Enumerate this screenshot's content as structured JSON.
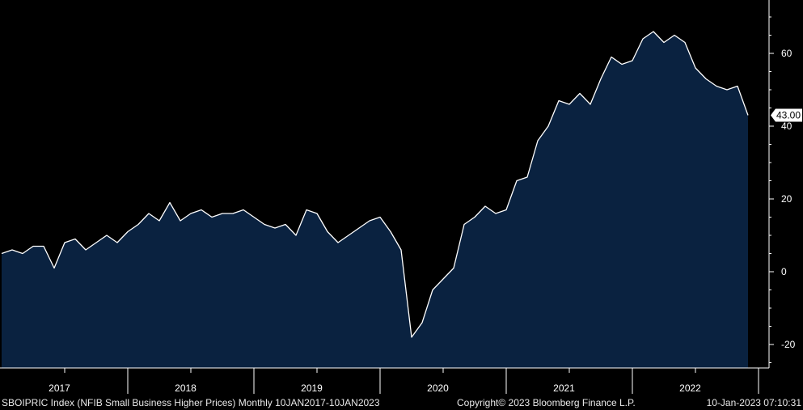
{
  "footer": {
    "left": "SBOIPRIC Index (NFIB Small Business Higher Prices)  Monthly 10JAN2017-10JAN2023",
    "copyright": "Copyright© 2023 Bloomberg Finance L.P.",
    "timestamp": "10-Jan-2023 07:10:31"
  },
  "colors": {
    "background": "#000000",
    "area_fill": "#0a2240",
    "line": "#ffffff",
    "axis": "#ffffff",
    "text": "#ffffff"
  },
  "chart_data": {
    "type": "area",
    "title": "",
    "xlabel": "",
    "ylabel": "",
    "ylim": [
      -26,
      74
    ],
    "y_ticks": [
      -20,
      0,
      20,
      40,
      60
    ],
    "x_ticks": [
      "2017",
      "2018",
      "2019",
      "2020",
      "2021",
      "2022"
    ],
    "last_value_label": "43.00",
    "grid": false,
    "series": [
      {
        "x": [
          "2017-01",
          "2017-02",
          "2017-03",
          "2017-04",
          "2017-05",
          "2017-06",
          "2017-07",
          "2017-08",
          "2017-09",
          "2017-10",
          "2017-11",
          "2017-12",
          "2018-01",
          "2018-02",
          "2018-03",
          "2018-04",
          "2018-05",
          "2018-06",
          "2018-07",
          "2018-08",
          "2018-09",
          "2018-10",
          "2018-11",
          "2018-12",
          "2019-01",
          "2019-02",
          "2019-03",
          "2019-04",
          "2019-05",
          "2019-06",
          "2019-07",
          "2019-08",
          "2019-09",
          "2019-10",
          "2019-11",
          "2019-12",
          "2020-01",
          "2020-02",
          "2020-03",
          "2020-04",
          "2020-05",
          "2020-06",
          "2020-07",
          "2020-08",
          "2020-09",
          "2020-10",
          "2020-11",
          "2020-12",
          "2021-01",
          "2021-02",
          "2021-03",
          "2021-04",
          "2021-05",
          "2021-06",
          "2021-07",
          "2021-08",
          "2021-09",
          "2021-10",
          "2021-11",
          "2021-12",
          "2022-01",
          "2022-02",
          "2022-03",
          "2022-04",
          "2022-05",
          "2022-06",
          "2022-07",
          "2022-08",
          "2022-09",
          "2022-10",
          "2022-11",
          "2022-12"
        ],
        "values": [
          5,
          6,
          5,
          7,
          7,
          1,
          8,
          9,
          6,
          8,
          10,
          8,
          11,
          13,
          16,
          14,
          19,
          14,
          16,
          17,
          15,
          16,
          16,
          17,
          15,
          13,
          12,
          13,
          10,
          17,
          16,
          11,
          8,
          10,
          12,
          14,
          15,
          11,
          6,
          -18,
          -14,
          -5,
          -2,
          1,
          13,
          15,
          18,
          16,
          17,
          25,
          26,
          36,
          40,
          47,
          46,
          49,
          46,
          53,
          59,
          57,
          58,
          64,
          66,
          63,
          65,
          63,
          56,
          53,
          51,
          50,
          51,
          43
        ]
      }
    ]
  }
}
